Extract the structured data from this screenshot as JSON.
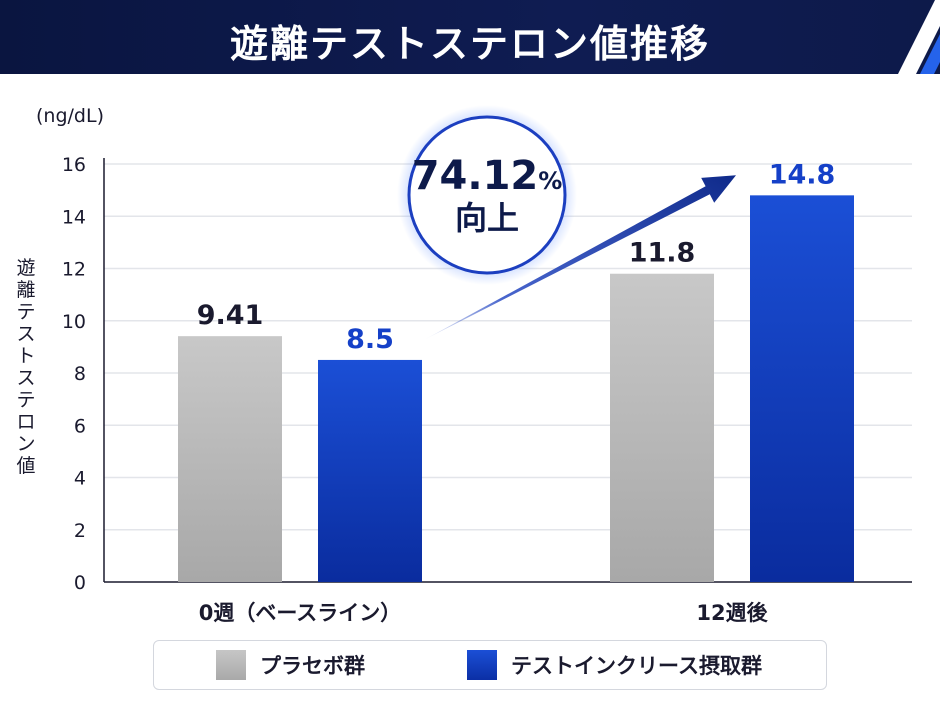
{
  "colors": {
    "navy": "#0d1a4a",
    "placebo_gray": "#b7b7b7",
    "product_blue": "#1240c4",
    "value_blue": "#1540c8"
  },
  "chart_data": {
    "type": "bar",
    "title": "遊離テストステロン値推移",
    "ylabel": "遊離テストステロン値",
    "unit": "(ng/dL)",
    "ylim": [
      0,
      16
    ],
    "yticks": [
      0,
      2,
      4,
      6,
      8,
      10,
      12,
      14,
      16
    ],
    "grid": true,
    "categories": [
      "0週（ベースライン）",
      "12週後"
    ],
    "series": [
      {
        "name": "プラセボ群",
        "values": [
          9.41,
          11.8
        ],
        "labels": [
          "9.41",
          "11.8"
        ],
        "color": "gray"
      },
      {
        "name": "テストインクリース摂取群",
        "values": [
          8.5,
          14.8
        ],
        "labels": [
          "8.5",
          "14.8"
        ],
        "color": "blue"
      }
    ],
    "legend_position": "bottom",
    "annotation": {
      "value": "74.12",
      "unit": "%",
      "text": "向上"
    }
  }
}
